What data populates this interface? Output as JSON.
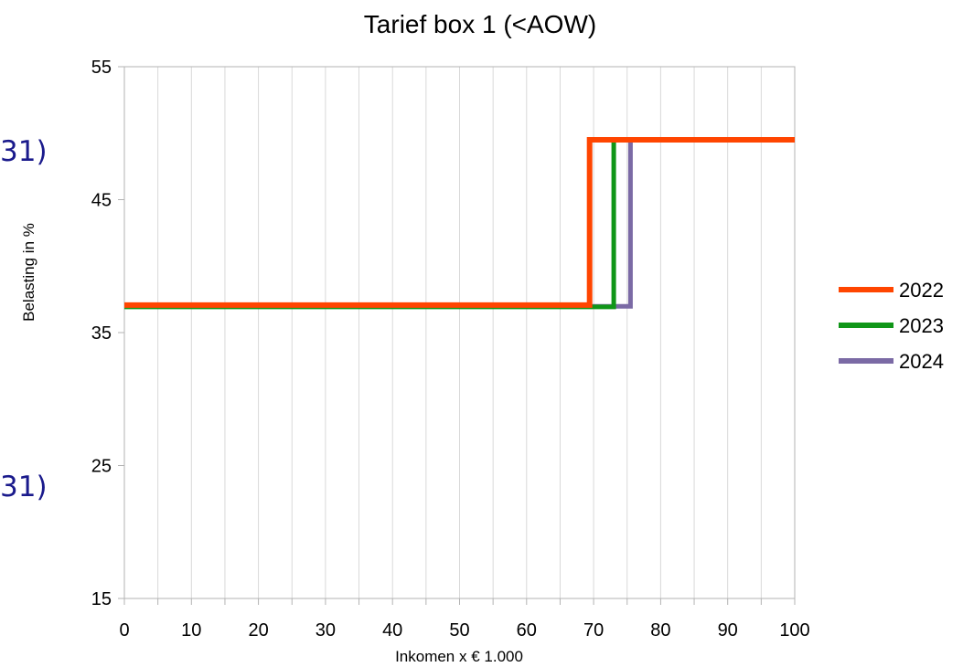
{
  "side_fragments": [
    "31)",
    "31)"
  ],
  "chart_data": {
    "type": "line",
    "title": "Tarief box 1 (<AOW)",
    "xlabel": "Inkomen x € 1.000",
    "ylabel": "Belasting in %",
    "xlim": [
      0,
      100
    ],
    "ylim": [
      15,
      55
    ],
    "xticks": [
      0,
      10,
      20,
      30,
      40,
      50,
      60,
      70,
      80,
      90,
      100
    ],
    "yticks": [
      15,
      25,
      35,
      45,
      55
    ],
    "grid": "vertical",
    "legend_position": "right",
    "series": [
      {
        "name": "2022",
        "color": "#ff4500",
        "x": [
          0,
          69.4,
          69.4,
          100
        ],
        "y": [
          37.07,
          37.07,
          49.5,
          49.5
        ]
      },
      {
        "name": "2023",
        "color": "#109618",
        "x": [
          0,
          73,
          73,
          100
        ],
        "y": [
          36.93,
          36.93,
          49.5,
          49.5
        ]
      },
      {
        "name": "2024",
        "color": "#7b6aa5",
        "x": [
          0,
          75.5,
          75.5,
          100
        ],
        "y": [
          36.97,
          36.97,
          49.5,
          49.5
        ]
      }
    ]
  }
}
